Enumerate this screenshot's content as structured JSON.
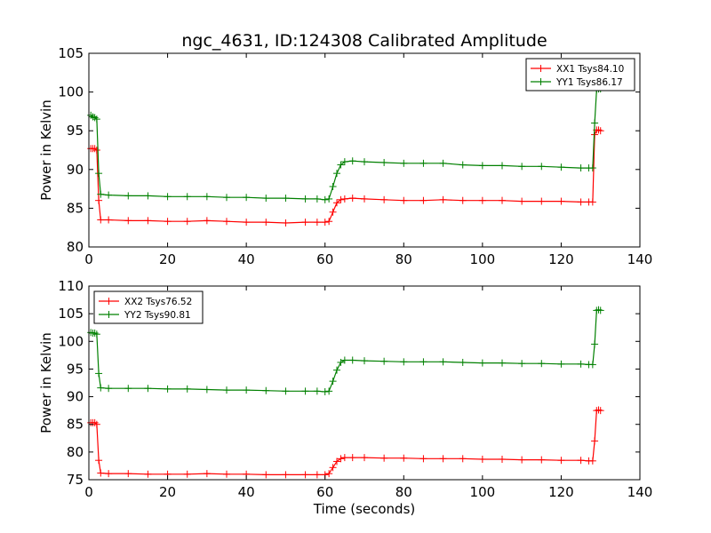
{
  "title": "ngc_4631, ID:124308 Calibrated Amplitude",
  "xlabel": "Time (seconds)",
  "colors": {
    "xx": "#ff0000",
    "yy": "#008000",
    "axes": "#000000",
    "background": "#ffffff"
  },
  "chart_data": [
    {
      "type": "line",
      "title": "ngc_4631, ID:124308 Calibrated Amplitude",
      "xlabel": "",
      "ylabel": "Power in Kelvin",
      "xlim": [
        0,
        140
      ],
      "ylim": [
        80,
        105
      ],
      "xticks": [
        0,
        20,
        40,
        60,
        80,
        100,
        120,
        140
      ],
      "yticks": [
        80,
        85,
        90,
        95,
        100,
        105
      ],
      "legend_position": "top-right",
      "grid": false,
      "series": [
        {
          "name": "XX1 Tsys84.10",
          "color": "#ff0000",
          "marker": "+",
          "x": [
            0.5,
            1.0,
            1.5,
            2.0,
            2.5,
            3,
            5,
            10,
            15,
            20,
            25,
            30,
            35,
            40,
            45,
            50,
            55,
            58,
            60,
            61,
            62,
            63,
            64,
            65,
            67,
            70,
            75,
            80,
            85,
            90,
            95,
            100,
            105,
            110,
            115,
            120,
            125,
            127,
            128,
            128.5,
            129,
            129.5,
            130
          ],
          "y": [
            92.7,
            92.7,
            92.7,
            92.5,
            86.0,
            83.5,
            83.5,
            83.4,
            83.4,
            83.3,
            83.3,
            83.4,
            83.3,
            83.2,
            83.2,
            83.1,
            83.2,
            83.2,
            83.2,
            83.3,
            84.5,
            85.7,
            86.1,
            86.2,
            86.3,
            86.2,
            86.1,
            86.0,
            86.0,
            86.1,
            86.0,
            86.0,
            86.0,
            85.9,
            85.9,
            85.9,
            85.8,
            85.8,
            85.8,
            94.5,
            95.1,
            95.1,
            95.0
          ]
        },
        {
          "name": "YY1 Tsys86.17",
          "color": "#008000",
          "marker": "+",
          "x": [
            0.5,
            1.0,
            1.5,
            2.0,
            2.5,
            3,
            5,
            10,
            15,
            20,
            25,
            30,
            35,
            40,
            45,
            50,
            55,
            58,
            60,
            61,
            62,
            63,
            64,
            65,
            67,
            70,
            75,
            80,
            85,
            90,
            95,
            100,
            105,
            110,
            115,
            120,
            125,
            127,
            128,
            128.5,
            129,
            129.5,
            130
          ],
          "y": [
            97.0,
            96.8,
            96.7,
            96.5,
            89.5,
            86.8,
            86.7,
            86.6,
            86.6,
            86.5,
            86.5,
            86.5,
            86.4,
            86.4,
            86.3,
            86.3,
            86.2,
            86.2,
            86.1,
            86.2,
            87.8,
            89.5,
            90.6,
            91.0,
            91.1,
            91.0,
            90.9,
            90.8,
            90.8,
            90.8,
            90.6,
            90.5,
            90.5,
            90.4,
            90.4,
            90.3,
            90.2,
            90.2,
            90.2,
            96.0,
            100.3,
            100.4,
            100.4
          ]
        }
      ]
    },
    {
      "type": "line",
      "title": "",
      "xlabel": "Time (seconds)",
      "ylabel": "Power in Kelvin",
      "xlim": [
        0,
        140
      ],
      "ylim": [
        75,
        110
      ],
      "xticks": [
        0,
        20,
        40,
        60,
        80,
        100,
        120,
        140
      ],
      "yticks": [
        75,
        80,
        85,
        90,
        95,
        100,
        105,
        110
      ],
      "legend_position": "top-left",
      "grid": false,
      "series": [
        {
          "name": "XX2 Tsys76.52",
          "color": "#ff0000",
          "marker": "+",
          "x": [
            0.5,
            1.0,
            1.5,
            2.0,
            2.5,
            3,
            5,
            10,
            15,
            20,
            25,
            30,
            35,
            40,
            45,
            50,
            55,
            58,
            60,
            61,
            62,
            63,
            64,
            65,
            67,
            70,
            75,
            80,
            85,
            90,
            95,
            100,
            105,
            110,
            115,
            120,
            125,
            127,
            128,
            128.5,
            129,
            129.5,
            130
          ],
          "y": [
            85.3,
            85.3,
            85.3,
            85.0,
            78.5,
            76.2,
            76.1,
            76.1,
            76.0,
            76.0,
            76.0,
            76.1,
            76.0,
            76.0,
            75.9,
            75.9,
            75.9,
            75.9,
            75.9,
            76.1,
            77.2,
            78.3,
            78.8,
            79.0,
            79.0,
            79.0,
            78.9,
            78.9,
            78.8,
            78.8,
            78.8,
            78.7,
            78.7,
            78.6,
            78.6,
            78.5,
            78.5,
            78.4,
            78.4,
            82.0,
            87.5,
            87.6,
            87.5
          ]
        },
        {
          "name": "YY2 Tsys90.81",
          "color": "#008000",
          "marker": "+",
          "x": [
            0.5,
            1.0,
            1.5,
            2.0,
            2.5,
            3,
            5,
            10,
            15,
            20,
            25,
            30,
            35,
            40,
            45,
            50,
            55,
            58,
            60,
            61,
            62,
            63,
            64,
            65,
            67,
            70,
            75,
            80,
            85,
            90,
            95,
            100,
            105,
            110,
            115,
            120,
            125,
            127,
            128,
            128.5,
            129,
            129.5,
            130
          ],
          "y": [
            101.6,
            101.5,
            101.5,
            101.3,
            94.2,
            91.6,
            91.5,
            91.5,
            91.5,
            91.4,
            91.4,
            91.3,
            91.2,
            91.2,
            91.1,
            91.0,
            91.0,
            91.0,
            90.9,
            91.0,
            92.8,
            94.8,
            96.2,
            96.6,
            96.6,
            96.5,
            96.4,
            96.3,
            96.3,
            96.3,
            96.2,
            96.1,
            96.1,
            96.0,
            96.0,
            95.9,
            95.9,
            95.8,
            95.8,
            99.5,
            105.6,
            105.7,
            105.6
          ]
        }
      ]
    }
  ]
}
